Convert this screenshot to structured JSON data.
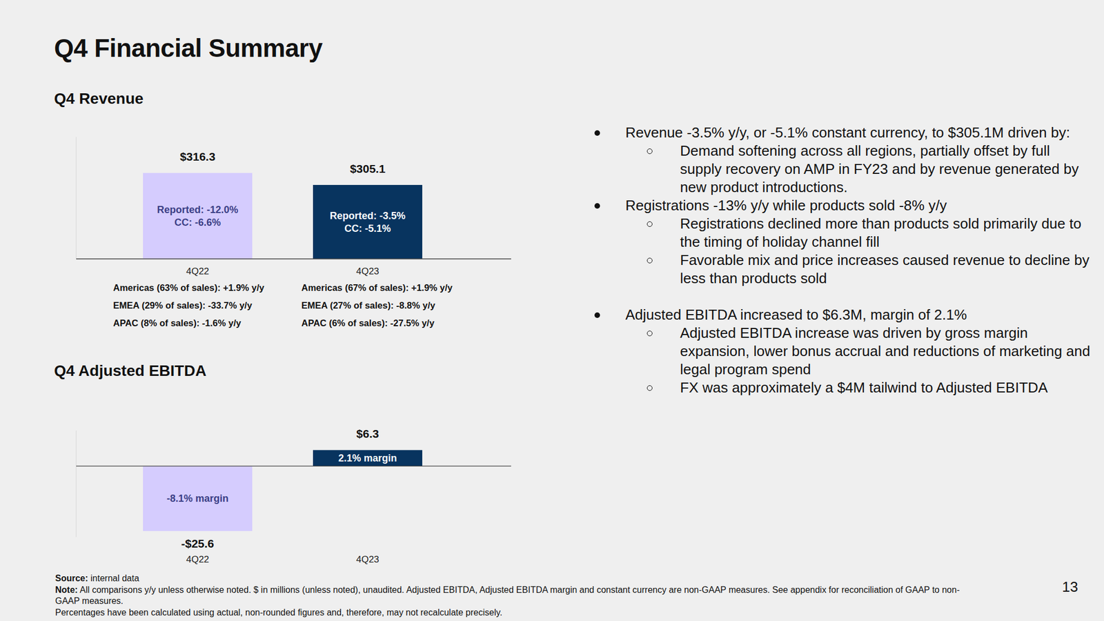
{
  "page": {
    "title": "Q4 Financial Summary",
    "bullets": [
      {
        "text": "Revenue -3.5% y/y, or -5.1% constant currency, to $305.1M driven by:",
        "sub": [
          "Demand softening across all regions, partially offset by full supply recovery on AMP in FY23 and by revenue generated by new product introductions."
        ]
      },
      {
        "text": "Registrations -13% y/y while products sold -8% y/y",
        "sub": [
          "Registrations declined more than products sold primarily due to the timing of holiday channel fill",
          "Favorable mix and price increases caused revenue to decline by less than products sold"
        ]
      },
      {
        "text": "Adjusted EBITDA increased to $6.3M, margin of 2.1%",
        "sub": [
          "Adjusted EBITDA increase was driven by gross margin expansion, lower bonus accrual and reductions of marketing and legal program spend",
          "FX was approximately a $4M tailwind to Adjusted EBITDA"
        ]
      }
    ],
    "footnotes": [
      {
        "label": "Source:",
        "text": "internal data"
      },
      {
        "label": "Note:",
        "text": "All comparisons y/y unless otherwise noted. $ in millions (unless noted), unaudited. Adjusted EBITDA, Adjusted EBITDA margin and constant currency are non-GAAP measures. See appendix for reconciliation of GAAP to non-GAAP measures."
      },
      {
        "text": "Percentages have been calculated using actual, non-rounded figures and, therefore, may not recalculate precisely."
      }
    ],
    "page_number": 13
  },
  "chart_data": [
    {
      "type": "bar",
      "title": "Q4 Revenue",
      "categories": [
        "4Q22",
        "4Q23"
      ],
      "values": [
        316.3,
        305.1
      ],
      "value_labels": [
        "$316.3",
        "$305.1"
      ],
      "colors": [
        "#d5ccfe",
        "#08345f"
      ],
      "ylim": [
        236,
        350
      ],
      "tick_labels": "x",
      "data_labels": true,
      "bar_notes": [
        [
          "Reported: -12.0%",
          "CC: -6.6%"
        ],
        [
          "Reported: -3.5%",
          "CC: -5.1%"
        ]
      ],
      "segment_notes": [
        [
          "Americas (63% of sales): +1.9% y/y",
          "EMEA (29% of sales): -33.7% y/y",
          "APAC (8% of sales): -1.6% y/y"
        ],
        [
          "Americas (67% of sales): +1.9% y/y",
          "EMEA (27% of sales): -8.8% y/y",
          "APAC (6% of sales): -27.5% y/y"
        ]
      ]
    },
    {
      "type": "bar",
      "title": "Q4 Adjusted EBITDA",
      "categories": [
        "4Q22",
        "4Q23"
      ],
      "values": [
        -25.6,
        6.3
      ],
      "value_labels": [
        "-$25.6",
        "$6.3"
      ],
      "colors": [
        "#d5ccfe",
        "#08345f"
      ],
      "ylim": [
        -28,
        14
      ],
      "tick_labels": "x",
      "data_labels": true,
      "bar_notes": [
        [
          "-8.1% margin"
        ],
        [
          "2.1% margin"
        ]
      ]
    }
  ]
}
